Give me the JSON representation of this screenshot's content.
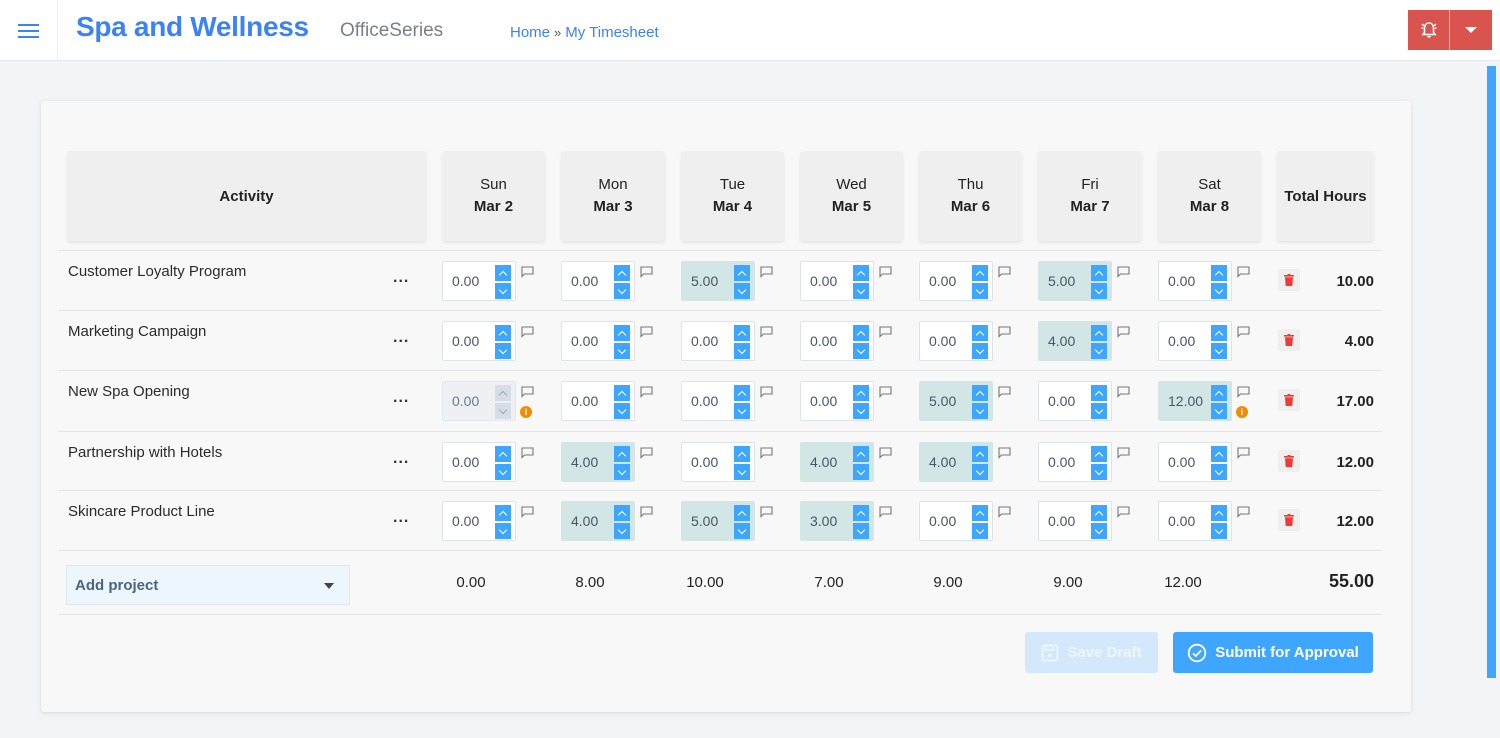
{
  "header": {
    "menu_icon": "hamburger-menu-icon",
    "brand": "Spa and Wellness",
    "product": "OfficeSeries",
    "breadcrumb": [
      {
        "label": "Home"
      },
      {
        "separator": "»"
      },
      {
        "label": "My Timesheet"
      }
    ],
    "alarm_icon": "alarm-bell-icon",
    "dropdown_icon": "caret-down-icon",
    "accent_color": "#3b82f6",
    "alert_color": "#d9534f"
  },
  "table": {
    "headers": {
      "activity": "Activity",
      "total": "Total Hours",
      "days": [
        {
          "day": "Sun",
          "date": "Mar 2"
        },
        {
          "day": "Mon",
          "date": "Mar 3"
        },
        {
          "day": "Tue",
          "date": "Mar 4"
        },
        {
          "day": "Wed",
          "date": "Mar 5"
        },
        {
          "day": "Thu",
          "date": "Mar 6"
        },
        {
          "day": "Fri",
          "date": "Mar 7"
        },
        {
          "day": "Sat",
          "date": "Mar 8"
        }
      ]
    },
    "rows": [
      {
        "activity": "Customer Loyalty Program",
        "more": "...",
        "hours": [
          "0.00",
          "0.00",
          "5.00",
          "0.00",
          "0.00",
          "5.00",
          "0.00"
        ],
        "total": "10.00"
      },
      {
        "activity": "Marketing Campaign",
        "more": "...",
        "hours": [
          "0.00",
          "0.00",
          "0.00",
          "0.00",
          "0.00",
          "4.00",
          "0.00"
        ],
        "total": "4.00"
      },
      {
        "activity": "New Spa Opening",
        "more": "...",
        "hours": [
          "0.00",
          "0.00",
          "0.00",
          "0.00",
          "5.00",
          "0.00",
          "12.00"
        ],
        "total": "17.00"
      },
      {
        "activity": "Partnership with Hotels",
        "more": "...",
        "hours": [
          "0.00",
          "4.00",
          "0.00",
          "4.00",
          "4.00",
          "0.00",
          "0.00"
        ],
        "total": "12.00"
      },
      {
        "activity": "Skincare Product Line",
        "more": "...",
        "hours": [
          "0.00",
          "4.00",
          "5.00",
          "3.00",
          "0.00",
          "0.00",
          "0.00"
        ],
        "total": "12.00"
      }
    ],
    "footer": {
      "add_project_label": "Add project",
      "day_totals": [
        "0.00",
        "8.00",
        "10.00",
        "7.00",
        "9.00",
        "9.00",
        "12.00"
      ],
      "grand_total": "55.00"
    }
  },
  "actions": {
    "save_draft": "Save Draft",
    "submit": "Submit for Approval"
  }
}
